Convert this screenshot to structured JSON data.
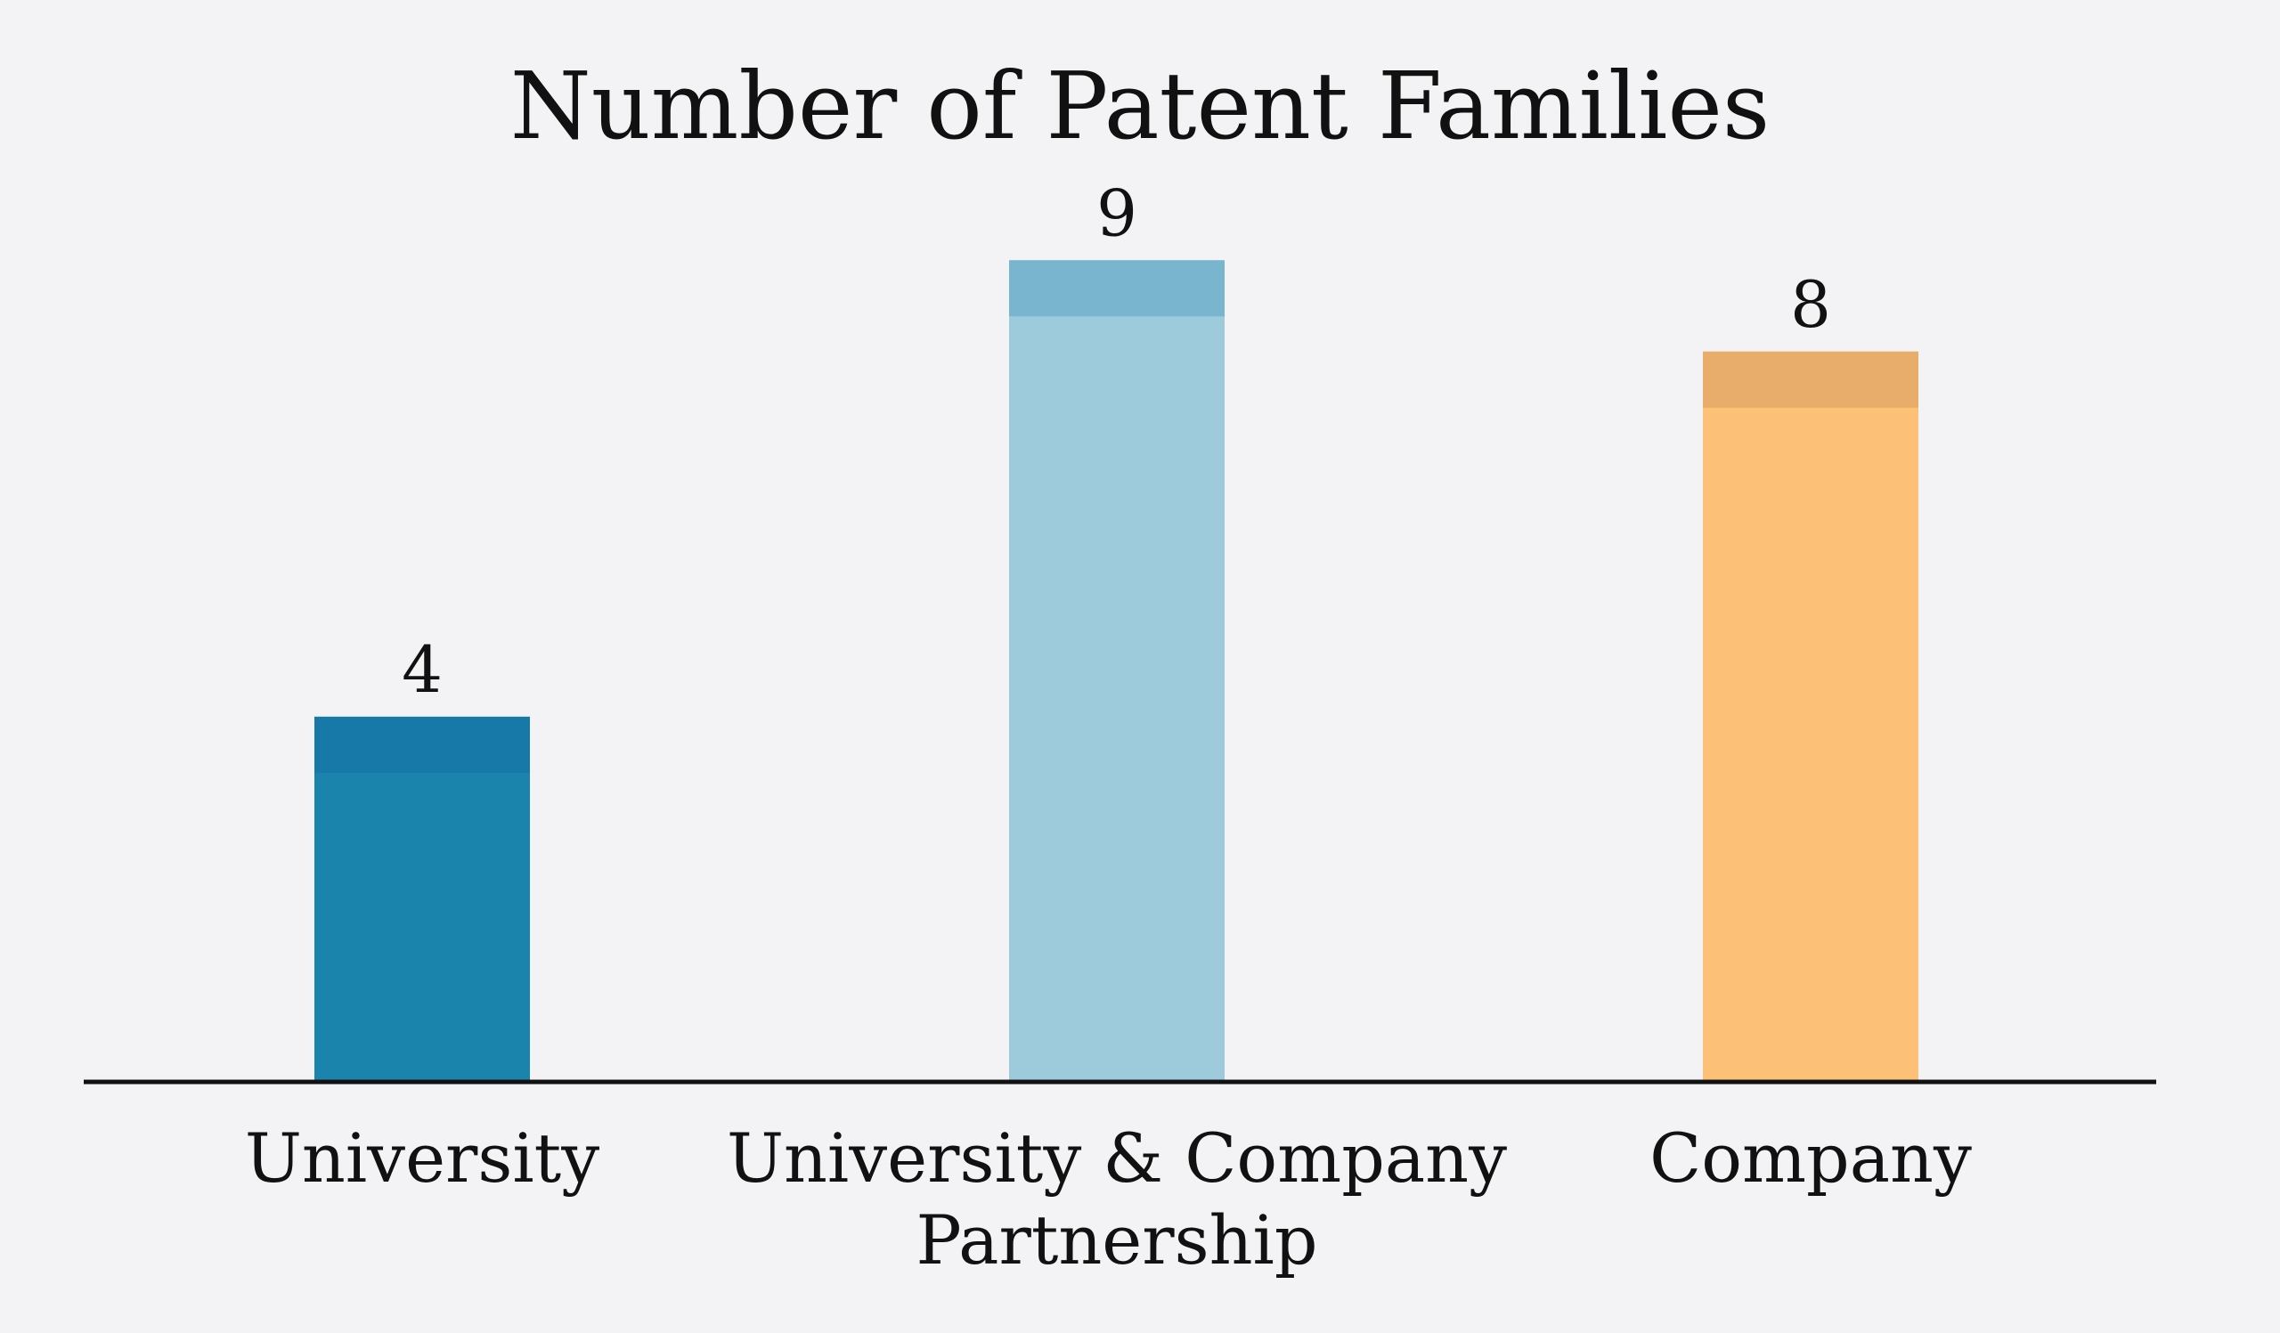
{
  "chart_data": {
    "type": "bar",
    "title": "Number of Patent Families",
    "xlabel": "",
    "ylabel": "",
    "categories": [
      [
        "University"
      ],
      [
        "University & Company",
        "Partnership"
      ],
      [
        "Company"
      ]
    ],
    "values": [
      4,
      9,
      8
    ],
    "value_labels": [
      "4",
      "9",
      "8"
    ],
    "ylim": [
      0,
      9.9
    ],
    "grid": false,
    "legend": "none",
    "colors": {
      "bars": [
        "#1b84ad",
        "#9ecbdb",
        "#fcc177"
      ],
      "caps": [
        "#1779a8",
        "#79b5cf",
        "#e8ac6b"
      ],
      "axis": "#111111",
      "background": "#f3f3f5"
    }
  }
}
